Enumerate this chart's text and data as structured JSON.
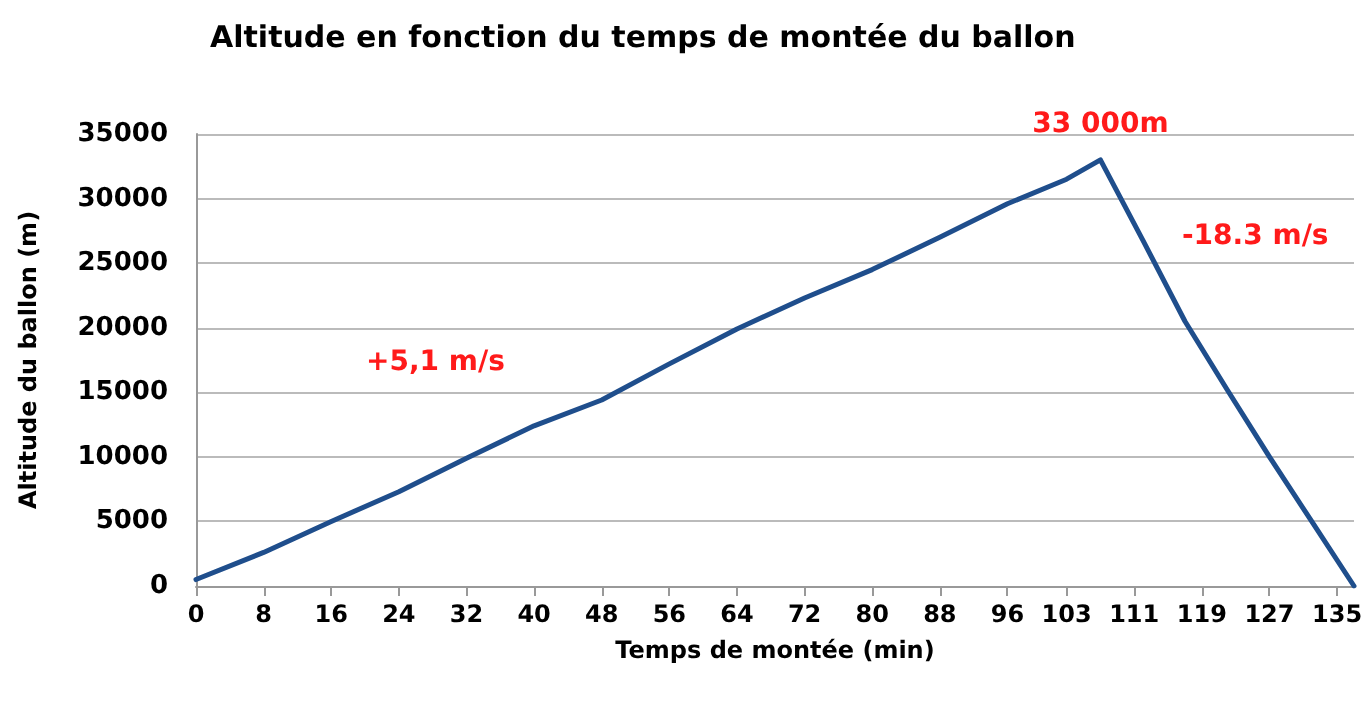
{
  "chart_data": {
    "type": "line",
    "title": "Altitude en fonction du temps de montée du ballon",
    "xlabel": "Temps de montée (min)",
    "ylabel": "Altitude du ballon (m)",
    "x": [
      0,
      8,
      16,
      24,
      32,
      40,
      48,
      56,
      64,
      72,
      80,
      88,
      96,
      103,
      107,
      112,
      117,
      122,
      127,
      132,
      137
    ],
    "series": [
      {
        "color": "#1f4e8c",
        "values": [
          500,
          2600,
          5000,
          7300,
          9900,
          12400,
          14400,
          17200,
          19900,
          22300,
          24500,
          27000,
          29600,
          31500,
          33000,
          26800,
          20500,
          15200,
          10000,
          5000,
          0
        ]
      }
    ],
    "xlim": [
      0,
      137
    ],
    "xticks": [
      0,
      8,
      16,
      24,
      32,
      40,
      48,
      56,
      64,
      72,
      80,
      88,
      96,
      103,
      111,
      119,
      127,
      135
    ],
    "ylim": [
      0,
      35000
    ],
    "yticks": [
      0,
      5000,
      10000,
      15000,
      20000,
      25000,
      30000,
      35000
    ],
    "grid": "y",
    "marker": "none",
    "line_style": "solid",
    "annotations": [
      {
        "text": "33 000m",
        "x": 107,
        "y": 33000
      },
      "+5,1 m/s",
      "-18.3 m/s"
    ]
  }
}
